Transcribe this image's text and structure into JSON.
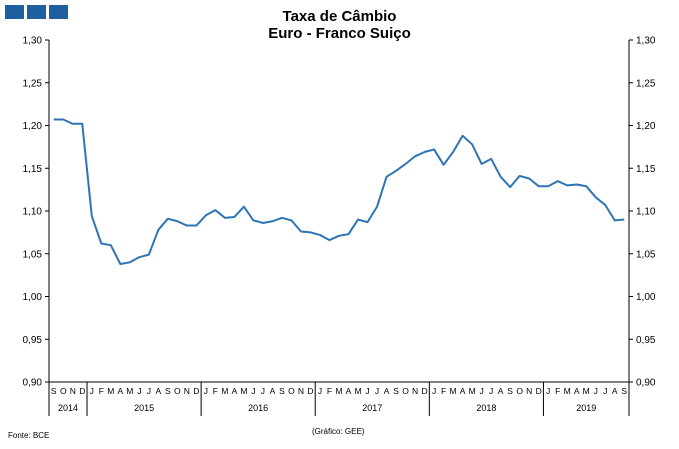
{
  "brand": {
    "color": "#1f5fa0",
    "tiles": 3
  },
  "chart_data": {
    "type": "line",
    "title": "Taxa de Câmbio",
    "subtitle": "Euro - Franco Suiço",
    "ylim": [
      0.9,
      1.3
    ],
    "yticks": [
      "0,90",
      "0,95",
      "1,00",
      "1,05",
      "1,10",
      "1,15",
      "1,20",
      "1,25",
      "1,30"
    ],
    "grid": false,
    "line_color": "#2e75b6",
    "month_labels": [
      "S",
      "O",
      "N",
      "D",
      "J",
      "F",
      "M",
      "A",
      "M",
      "J",
      "J",
      "A",
      "S",
      "O",
      "N",
      "D",
      "J",
      "F",
      "M",
      "A",
      "M",
      "J",
      "J",
      "A",
      "S",
      "O",
      "N",
      "D",
      "J",
      "F",
      "M",
      "A",
      "M",
      "J",
      "J",
      "A",
      "S",
      "O",
      "N",
      "D",
      "J",
      "F",
      "M",
      "A",
      "M",
      "J",
      "J",
      "A",
      "S",
      "O",
      "N",
      "D",
      "J",
      "F",
      "M",
      "A",
      "M",
      "J",
      "J",
      "A",
      "S"
    ],
    "years": [
      {
        "label": "2014",
        "start": 0,
        "count": 4
      },
      {
        "label": "2015",
        "start": 4,
        "count": 12
      },
      {
        "label": "2016",
        "start": 16,
        "count": 12
      },
      {
        "label": "2017",
        "start": 28,
        "count": 12
      },
      {
        "label": "2018",
        "start": 40,
        "count": 12
      },
      {
        "label": "2019",
        "start": 52,
        "count": 9
      }
    ],
    "values": [
      1.207,
      1.207,
      1.202,
      1.202,
      1.094,
      1.062,
      1.06,
      1.038,
      1.04,
      1.046,
      1.049,
      1.078,
      1.091,
      1.088,
      1.083,
      1.083,
      1.095,
      1.101,
      1.092,
      1.093,
      1.105,
      1.089,
      1.086,
      1.088,
      1.092,
      1.089,
      1.076,
      1.075,
      1.072,
      1.066,
      1.071,
      1.073,
      1.09,
      1.087,
      1.105,
      1.14,
      1.147,
      1.155,
      1.164,
      1.169,
      1.172,
      1.154,
      1.169,
      1.188,
      1.178,
      1.155,
      1.161,
      1.14,
      1.128,
      1.141,
      1.138,
      1.129,
      1.129,
      1.135,
      1.13,
      1.131,
      1.129,
      1.116,
      1.107,
      1.089,
      1.09
    ]
  },
  "footer": {
    "source": "Fonte: BCE",
    "credit": "(Gráfico:  GEE)"
  }
}
